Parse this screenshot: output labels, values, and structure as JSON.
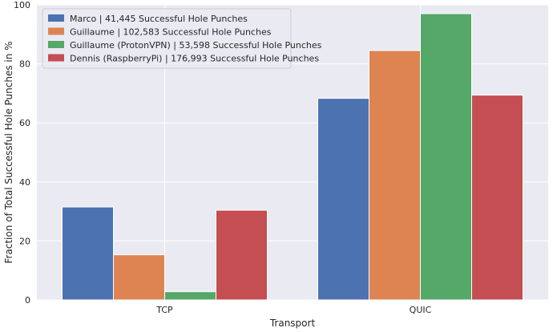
{
  "chart_data": {
    "type": "bar",
    "title": "",
    "xlabel": "Transport",
    "ylabel": "Fraction of Total Successful Hole Punches in %",
    "categories": [
      "TCP",
      "QUIC"
    ],
    "ylim": [
      0,
      100
    ],
    "yticks": [
      0,
      20,
      40,
      60,
      80,
      100
    ],
    "grid": true,
    "legend_position": "top-left",
    "series": [
      {
        "name": "Marco | 41,445 Successful Hole Punches",
        "color": "#4c72b0",
        "values": [
          31.5,
          68.3
        ]
      },
      {
        "name": "Guillaume | 102,583 Successful Hole Punches",
        "color": "#dd8452",
        "values": [
          15.3,
          84.5
        ]
      },
      {
        "name": "Guillaume (ProtonVPN) | 53,598 Successful Hole Punches",
        "color": "#55a868",
        "values": [
          2.8,
          97.0
        ]
      },
      {
        "name": "Dennis (RaspberryPi) | 176,993 Successful Hole Punches",
        "color": "#c44e52",
        "values": [
          30.4,
          69.4
        ]
      }
    ]
  }
}
